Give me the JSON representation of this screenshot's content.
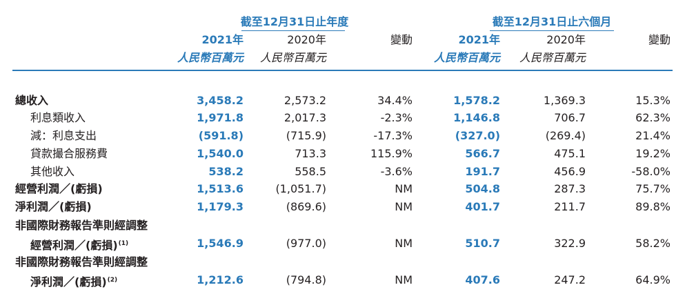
{
  "header": {
    "group1_title": "截至12月31日止年度",
    "group2_title": "截至12月31日止六個月",
    "col_2021": "2021年",
    "col_2020": "2020年",
    "col_change": "變動",
    "unit": "人民幣百萬元"
  },
  "rows": [
    {
      "label": "總收入",
      "v2021": "3,458.2",
      "v2020": "2,573.2",
      "chg": "34.4%",
      "h2021": "1,578.2",
      "h2020": "1,369.3",
      "hchg": "15.3%"
    },
    {
      "label": "利息類收入",
      "v2021": "1,971.8",
      "v2020": "2,017.3",
      "chg": "-2.3%",
      "h2021": "1,146.8",
      "h2020": "706.7",
      "hchg": "62.3%"
    },
    {
      "label": "減：利息支出",
      "v2021": "(591.8)",
      "v2020": "(715.9)",
      "chg": "-17.3%",
      "h2021": "(327.0)",
      "h2020": "(269.4)",
      "hchg": "21.4%"
    },
    {
      "label": "貸款撮合服務費",
      "v2021": "1,540.0",
      "v2020": "713.3",
      "chg": "115.9%",
      "h2021": "566.7",
      "h2020": "475.1",
      "hchg": "19.2%"
    },
    {
      "label": "其他收入",
      "v2021": "538.2",
      "v2020": "558.5",
      "chg": "-3.6%",
      "h2021": "191.7",
      "h2020": "456.9",
      "hchg": "-58.0%"
    },
    {
      "label": "經營利潤／(虧損)",
      "v2021": "1,513.6",
      "v2020": "(1,051.7)",
      "chg": "NM",
      "h2021": "504.8",
      "h2020": "287.3",
      "hchg": "75.7%"
    },
    {
      "label": "淨利潤／(虧損)",
      "v2021": "1,179.3",
      "v2020": "(869.6)",
      "chg": "NM",
      "h2021": "401.7",
      "h2020": "211.7",
      "hchg": "89.8%"
    },
    {
      "label": "非國際財務報告準則經調整"
    },
    {
      "label": "經營利潤／(虧損)",
      "note": "(1)",
      "v2021": "1,546.9",
      "v2020": "(977.0)",
      "chg": "NM",
      "h2021": "510.7",
      "h2020": "322.9",
      "hchg": "58.2%"
    },
    {
      "label": "非國際財務報告準則經調整"
    },
    {
      "label": "淨利潤／(虧損)",
      "note": "(2)",
      "v2021": "1,212.6",
      "v2020": "(794.8)",
      "chg": "NM",
      "h2021": "407.6",
      "h2020": "247.2",
      "hchg": "64.9%"
    }
  ],
  "colors": {
    "accent": "#2a7ab8",
    "text": "#231f20"
  }
}
